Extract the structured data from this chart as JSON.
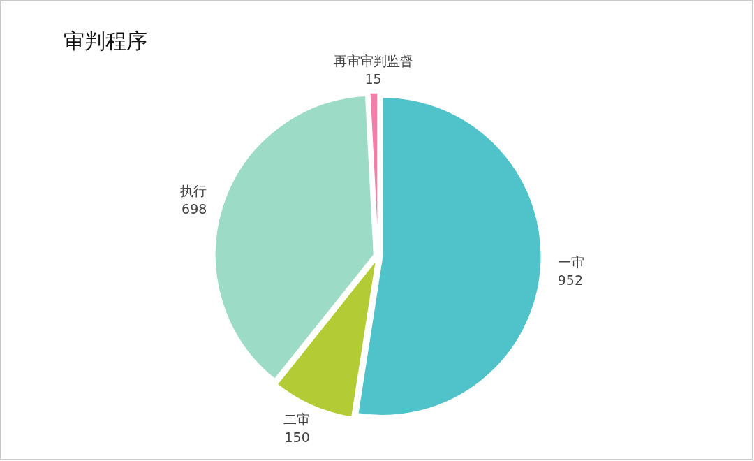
{
  "chart_data": {
    "type": "pie",
    "title": "审判程序",
    "categories": [
      "一审",
      "二审",
      "执行",
      "再审审判监督"
    ],
    "values": [
      952,
      150,
      698,
      15
    ],
    "colors": [
      "#4fc3c9",
      "#b3cc35",
      "#9cdbc6",
      "#f27ea9"
    ],
    "data_labels": true
  }
}
